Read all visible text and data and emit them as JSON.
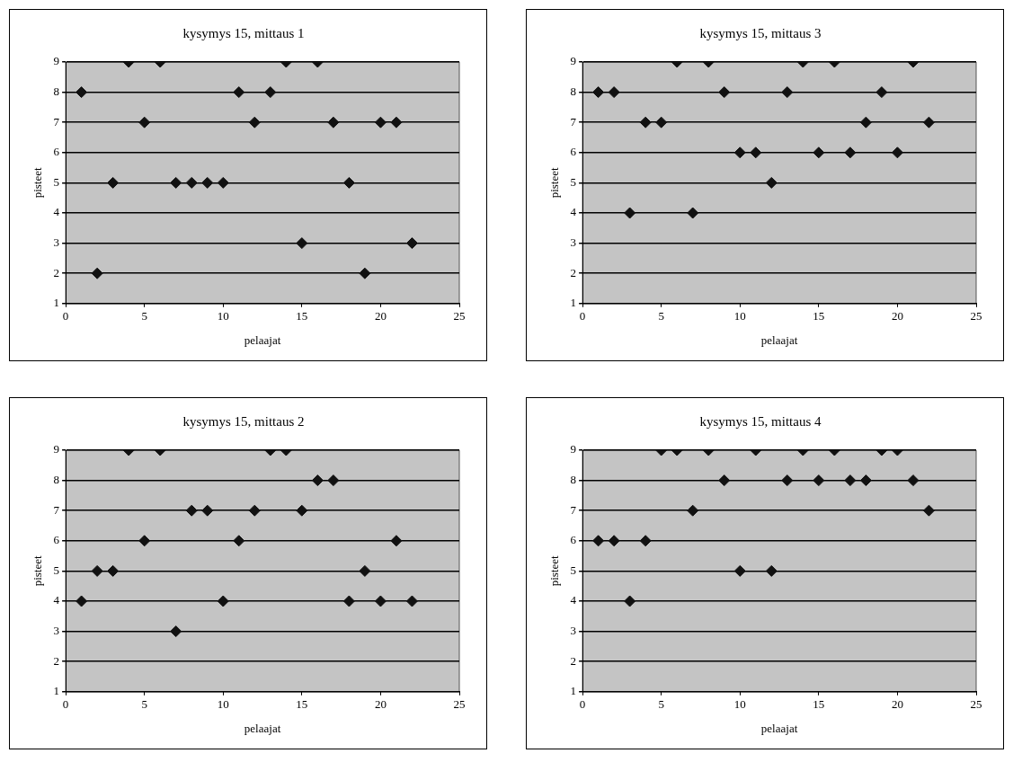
{
  "chart_data": [
    {
      "type": "scatter",
      "title": "kysymys 15, mittaus 1",
      "xlabel": "pelaajat",
      "ylabel": "pisteet",
      "x": [
        1,
        2,
        3,
        4,
        5,
        6,
        7,
        8,
        9,
        10,
        11,
        12,
        13,
        14,
        15,
        16,
        17,
        18,
        19,
        20,
        21,
        22
      ],
      "series": [
        {
          "color": "#111111",
          "values": [
            8,
            2,
            5,
            9,
            7,
            9,
            5,
            5,
            5,
            5,
            8,
            7,
            8,
            9,
            3,
            9,
            7,
            5,
            2,
            7,
            7,
            3
          ]
        }
      ],
      "xlim": [
        0,
        25
      ],
      "xticks": [
        0,
        5,
        10,
        15,
        20,
        25
      ],
      "ylim": [
        1,
        9
      ],
      "yticks": [
        1,
        2,
        3,
        4,
        5,
        6,
        7,
        8,
        9
      ],
      "grid": "y",
      "legend": false,
      "marker": "diamond"
    },
    {
      "type": "scatter",
      "title": "kysymys 15, mittaus 3",
      "xlabel": "pelaajat",
      "ylabel": "pisteet",
      "x": [
        1,
        2,
        3,
        4,
        5,
        6,
        7,
        8,
        9,
        10,
        11,
        12,
        13,
        14,
        15,
        16,
        17,
        18,
        19,
        20,
        21,
        22
      ],
      "series": [
        {
          "color": "#111111",
          "values": [
            8,
            8,
            4,
            7,
            7,
            9,
            4,
            9,
            8,
            6,
            6,
            5,
            8,
            9,
            6,
            9,
            6,
            7,
            8,
            6,
            9,
            7
          ]
        }
      ],
      "xlim": [
        0,
        25
      ],
      "xticks": [
        0,
        5,
        10,
        15,
        20,
        25
      ],
      "ylim": [
        1,
        9
      ],
      "yticks": [
        1,
        2,
        3,
        4,
        5,
        6,
        7,
        8,
        9
      ],
      "grid": "y",
      "legend": false,
      "marker": "diamond"
    },
    {
      "type": "scatter",
      "title": "kysymys 15, mittaus 2",
      "xlabel": "pelaajat",
      "ylabel": "pisteet",
      "x": [
        1,
        2,
        3,
        4,
        5,
        6,
        7,
        8,
        9,
        10,
        11,
        12,
        13,
        14,
        15,
        16,
        17,
        18,
        19,
        20,
        21,
        22
      ],
      "series": [
        {
          "color": "#111111",
          "values": [
            4,
            5,
            5,
            9,
            6,
            9,
            3,
            7,
            7,
            4,
            6,
            7,
            9,
            9,
            7,
            8,
            8,
            4,
            5,
            4,
            6,
            4
          ]
        }
      ],
      "xlim": [
        0,
        25
      ],
      "xticks": [
        0,
        5,
        10,
        15,
        20,
        25
      ],
      "ylim": [
        1,
        9
      ],
      "yticks": [
        1,
        2,
        3,
        4,
        5,
        6,
        7,
        8,
        9
      ],
      "grid": "y",
      "legend": false,
      "marker": "diamond"
    },
    {
      "type": "scatter",
      "title": "kysymys 15, mittaus 4",
      "xlabel": "pelaajat",
      "ylabel": "pisteet",
      "x": [
        1,
        2,
        3,
        4,
        5,
        6,
        7,
        8,
        9,
        10,
        11,
        12,
        13,
        14,
        15,
        16,
        17,
        18,
        19,
        20,
        21,
        22
      ],
      "series": [
        {
          "color": "#111111",
          "values": [
            6,
            6,
            4,
            6,
            9,
            9,
            7,
            9,
            8,
            5,
            9,
            5,
            8,
            9,
            8,
            9,
            8,
            8,
            9,
            9,
            8,
            7
          ]
        }
      ],
      "xlim": [
        0,
        25
      ],
      "xticks": [
        0,
        5,
        10,
        15,
        20,
        25
      ],
      "ylim": [
        1,
        9
      ],
      "yticks": [
        1,
        2,
        3,
        4,
        5,
        6,
        7,
        8,
        9
      ],
      "grid": "y",
      "legend": false,
      "marker": "diamond"
    }
  ]
}
